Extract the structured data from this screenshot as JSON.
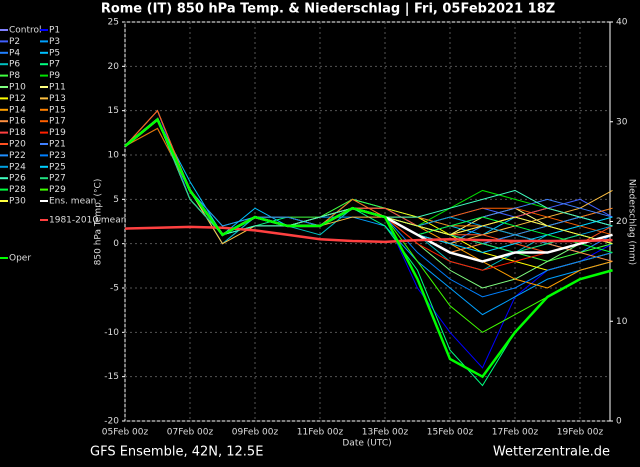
{
  "chart_data": {
    "type": "line",
    "title": "Rome  (IT)  850 hPa Temp. & Niederschlag | Fri, 05Feb2021 18Z",
    "y_label": "850 hPa Temp. (°C)",
    "y2_label": "Niederschlag (mm)",
    "x_label": "Date (UTC)",
    "footer_left": "GFS Ensemble, 42N, 12.5E",
    "footer_right": "Wetterzentrale.de",
    "categories": [
      "05Feb 00z",
      null,
      "07Feb 00z",
      null,
      "09Feb 00z",
      null,
      "11Feb 00z",
      null,
      "13Feb 00z",
      null,
      "15Feb 00z",
      null,
      "17Feb 00z",
      null,
      "19Feb 00z",
      null
    ],
    "ylim": [
      -20,
      25
    ],
    "yticks": [
      -20,
      -15,
      -10,
      -5,
      0,
      5,
      10,
      15,
      20,
      25
    ],
    "y2lim": [
      0,
      40
    ],
    "y2ticks": [
      0,
      10,
      20,
      30,
      40
    ],
    "grid": true,
    "series": [
      {
        "name": "Control",
        "color": "#8080ff",
        "values": [
          11,
          14,
          6,
          1,
          3,
          3,
          2,
          4,
          3,
          2,
          1,
          2,
          3,
          2,
          3,
          4
        ]
      },
      {
        "name": "P1",
        "color": "#0000ff",
        "values": [
          11,
          15,
          5,
          1,
          3,
          2,
          2,
          5,
          3,
          -5,
          -10,
          -14,
          -6,
          -3,
          -2,
          0
        ]
      },
      {
        "name": "P2",
        "color": "#4060ff",
        "values": [
          11,
          14,
          6,
          0,
          3,
          2,
          3,
          4,
          4,
          2,
          3,
          4,
          3,
          4,
          5,
          3
        ]
      },
      {
        "name": "P3",
        "color": "#00a0ff",
        "values": [
          11,
          14,
          5,
          1,
          2,
          2,
          3,
          3,
          2,
          -2,
          -5,
          -8,
          -6,
          -4,
          -3,
          -2
        ]
      },
      {
        "name": "P4",
        "color": "#2080ff",
        "values": [
          11,
          13,
          6,
          1,
          3,
          3,
          2,
          4,
          3,
          1,
          0,
          2,
          1,
          0,
          -1,
          1
        ]
      },
      {
        "name": "P5",
        "color": "#00c0ff",
        "values": [
          11,
          14,
          7,
          1,
          4,
          2,
          2,
          5,
          4,
          3,
          2,
          1,
          3,
          4,
          3,
          2
        ]
      },
      {
        "name": "P6",
        "color": "#00c0c0",
        "values": [
          11,
          15,
          6,
          0,
          3,
          2,
          1,
          4,
          3,
          1,
          -2,
          -3,
          -1,
          1,
          2,
          3
        ]
      },
      {
        "name": "P7",
        "color": "#00ff80",
        "values": [
          11,
          14,
          5,
          1,
          2,
          3,
          2,
          4,
          2,
          -3,
          -12,
          -16,
          -10,
          -6,
          -4,
          -3
        ]
      },
      {
        "name": "P8",
        "color": "#40ff40",
        "values": [
          11,
          14,
          6,
          2,
          3,
          3,
          3,
          5,
          4,
          2,
          1,
          0,
          -1,
          -2,
          -1,
          0
        ]
      },
      {
        "name": "P9",
        "color": "#00e000",
        "values": [
          11,
          13,
          6,
          1,
          3,
          2,
          2,
          4,
          3,
          2,
          4,
          6,
          5,
          4,
          3,
          2
        ]
      },
      {
        "name": "P10",
        "color": "#80ff80",
        "values": [
          11,
          14,
          6,
          1,
          3,
          2,
          2,
          4,
          3,
          0,
          -3,
          -5,
          -4,
          -2,
          0,
          1
        ]
      },
      {
        "name": "P11",
        "color": "#ffff80",
        "values": [
          11,
          14,
          5,
          1,
          3,
          2,
          3,
          4,
          3,
          2,
          1,
          3,
          4,
          2,
          1,
          0
        ]
      },
      {
        "name": "P12",
        "color": "#ffff00",
        "values": [
          11,
          15,
          6,
          1,
          3,
          3,
          2,
          4,
          4,
          3,
          1,
          -1,
          -2,
          -3,
          -2,
          -1
        ]
      },
      {
        "name": "P13",
        "color": "#ffc040",
        "values": [
          11,
          14,
          6,
          0,
          2,
          2,
          2,
          3,
          3,
          1,
          0,
          1,
          2,
          3,
          4,
          6
        ]
      },
      {
        "name": "P14",
        "color": "#ffa000",
        "values": [
          11,
          14,
          6,
          1,
          3,
          2,
          2,
          4,
          3,
          2,
          0,
          -2,
          -4,
          -5,
          -3,
          -2
        ]
      },
      {
        "name": "P15",
        "color": "#ff8000",
        "values": [
          11,
          14,
          5,
          1,
          3,
          2,
          2,
          5,
          3,
          3,
          2,
          2,
          1,
          2,
          3,
          4
        ]
      },
      {
        "name": "P16",
        "color": "#ff9040",
        "values": [
          11,
          14,
          6,
          1,
          3,
          2,
          3,
          4,
          3,
          1,
          -1,
          0,
          1,
          0,
          -1,
          -2
        ]
      },
      {
        "name": "P17",
        "color": "#ff6000",
        "values": [
          11,
          13,
          6,
          1,
          3,
          3,
          2,
          4,
          3,
          2,
          3,
          4,
          4,
          3,
          2,
          1
        ]
      },
      {
        "name": "P18",
        "color": "#ff4040",
        "values": [
          11,
          14,
          6,
          1,
          3,
          2,
          2,
          4,
          4,
          2,
          1,
          2,
          3,
          4,
          3,
          2
        ]
      },
      {
        "name": "P19",
        "color": "#ff2000",
        "values": [
          11,
          14,
          6,
          1,
          3,
          2,
          2,
          4,
          3,
          0,
          -2,
          -3,
          -2,
          -1,
          0,
          1
        ]
      },
      {
        "name": "P20",
        "color": "#ff5020",
        "values": [
          11,
          15,
          6,
          1,
          3,
          2,
          2,
          4,
          3,
          2,
          1,
          1,
          0,
          -1,
          0,
          2
        ]
      },
      {
        "name": "P21",
        "color": "#4080ff",
        "values": [
          11,
          14,
          5,
          1,
          3,
          2,
          2,
          4,
          3,
          1,
          2,
          3,
          4,
          5,
          4,
          3
        ]
      },
      {
        "name": "P22",
        "color": "#2090ff",
        "values": [
          11,
          14,
          6,
          2,
          3,
          2,
          2,
          4,
          3,
          2,
          1,
          0,
          1,
          2,
          3,
          2
        ]
      },
      {
        "name": "P23",
        "color": "#0080ff",
        "values": [
          11,
          14,
          6,
          1,
          3,
          3,
          2,
          4,
          3,
          -1,
          -4,
          -6,
          -5,
          -3,
          -2,
          -1
        ]
      },
      {
        "name": "P24",
        "color": "#00a0e0",
        "values": [
          11,
          14,
          6,
          1,
          3,
          2,
          2,
          4,
          3,
          2,
          3,
          2,
          1,
          0,
          1,
          2
        ]
      },
      {
        "name": "P25",
        "color": "#00d0ff",
        "values": [
          11,
          14,
          6,
          1,
          3,
          2,
          2,
          4,
          3,
          1,
          0,
          -1,
          0,
          1,
          2,
          3
        ]
      },
      {
        "name": "P26",
        "color": "#40ffc0",
        "values": [
          11,
          14,
          6,
          1,
          2,
          2,
          3,
          4,
          3,
          3,
          4,
          5,
          6,
          4,
          3,
          2
        ]
      },
      {
        "name": "P27",
        "color": "#20e080",
        "values": [
          11,
          14,
          5,
          1,
          3,
          2,
          2,
          4,
          3,
          2,
          1,
          0,
          -1,
          0,
          1,
          0
        ]
      },
      {
        "name": "P28",
        "color": "#00ff40",
        "values": [
          11,
          14,
          6,
          1,
          3,
          2,
          2,
          4,
          3,
          1,
          2,
          3,
          2,
          1,
          0,
          -1
        ]
      },
      {
        "name": "P29",
        "color": "#40ff00",
        "values": [
          11,
          14,
          6,
          1,
          3,
          2,
          2,
          4,
          3,
          -2,
          -7,
          -10,
          -8,
          -6,
          -4,
          -3
        ]
      },
      {
        "name": "P30",
        "color": "#ffff40",
        "values": [
          11,
          14,
          6,
          1,
          3,
          2,
          2,
          4,
          3,
          2,
          1,
          2,
          3,
          2,
          1,
          0
        ]
      },
      {
        "name": "Ens. mean",
        "color": "#ffffff",
        "values": [
          11,
          14,
          6,
          1,
          3,
          2,
          2,
          4,
          3,
          1,
          -1,
          -2,
          -1,
          -1,
          0,
          1
        ]
      },
      {
        "name": "1981-2010 mean",
        "color": "#ff4040",
        "values": [
          1.7,
          1.8,
          1.9,
          1.8,
          1.5,
          1,
          0.5,
          0.3,
          0.2,
          0.4,
          0.5,
          0.4,
          0.3,
          0.3,
          0.3,
          0.4
        ]
      },
      {
        "name": "Oper",
        "color": "#00ff00",
        "values": [
          11,
          14,
          6,
          1,
          3,
          2,
          2,
          4,
          3,
          -4,
          -13,
          -15,
          -10,
          -6,
          -4,
          -3
        ]
      }
    ]
  }
}
